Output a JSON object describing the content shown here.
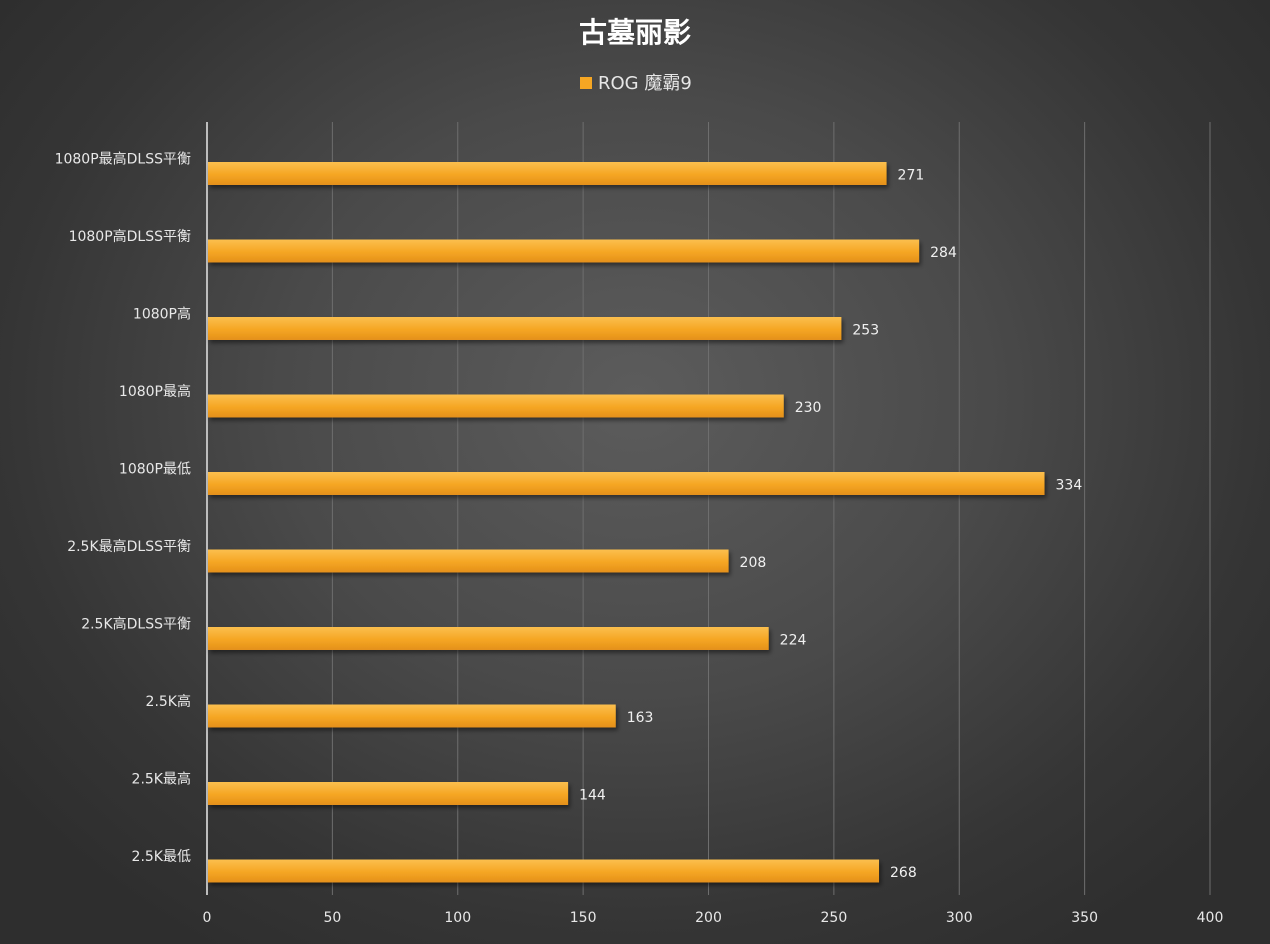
{
  "chart_data": {
    "type": "bar",
    "orientation": "horizontal",
    "title": "古墓丽影",
    "legend": {
      "position": "top"
    },
    "categories": [
      "1080P最高DLSS平衡",
      "1080P高DLSS平衡",
      "1080P高",
      "1080P最高",
      "1080P最低",
      "2.5K最高DLSS平衡",
      "2.5K高DLSS平衡",
      "2.5K高",
      "2.5K最高",
      "2.5K最低"
    ],
    "series": [
      {
        "name": "ROG 魔霸9",
        "color": "#f5a623",
        "values": [
          271,
          284,
          253,
          230,
          334,
          208,
          224,
          163,
          144,
          268
        ]
      }
    ],
    "xlim": [
      0,
      400
    ],
    "xticks": [
      0,
      50,
      100,
      150,
      200,
      250,
      300,
      350,
      400
    ],
    "grid": {
      "vertical": true,
      "horizontal": false
    },
    "data_labels": true
  }
}
